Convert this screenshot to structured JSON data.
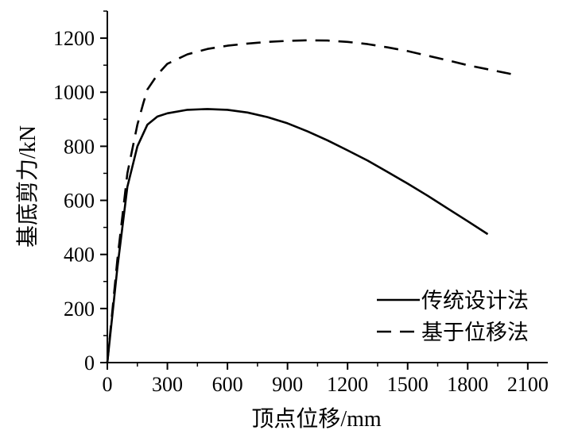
{
  "chart_data": {
    "type": "line",
    "title": "",
    "xlabel": "顶点位移/mm",
    "ylabel": "基底剪力/kN",
    "xlim": [
      0,
      2200
    ],
    "ylim": [
      0,
      1300
    ],
    "xticks": [
      0,
      300,
      600,
      900,
      1200,
      1500,
      1800,
      2100
    ],
    "yticks": [
      0,
      200,
      400,
      600,
      800,
      1000,
      1200
    ],
    "grid": false,
    "legend_position": "bottom-right",
    "series": [
      {
        "name": "传统设计法",
        "style": "solid",
        "color": "#000000",
        "x": [
          0,
          50,
          100,
          150,
          200,
          250,
          300,
          400,
          500,
          600,
          700,
          800,
          900,
          1000,
          1100,
          1200,
          1300,
          1400,
          1500,
          1600,
          1700,
          1800,
          1900
        ],
        "y": [
          0,
          350,
          650,
          800,
          880,
          910,
          922,
          935,
          938,
          935,
          925,
          908,
          885,
          855,
          822,
          785,
          747,
          705,
          662,
          617,
          570,
          523,
          475
        ]
      },
      {
        "name": "基于位移法",
        "style": "dashed",
        "color": "#000000",
        "x": [
          0,
          50,
          100,
          150,
          180,
          200,
          250,
          300,
          400,
          500,
          600,
          700,
          800,
          900,
          1000,
          1100,
          1200,
          1300,
          1400,
          1500,
          1600,
          1700,
          1800,
          1900,
          2000,
          2050
        ],
        "y": [
          0,
          380,
          700,
          880,
          960,
          1010,
          1065,
          1105,
          1140,
          1160,
          1172,
          1180,
          1186,
          1190,
          1192,
          1191,
          1186,
          1178,
          1166,
          1152,
          1135,
          1118,
          1100,
          1085,
          1070,
          1062
        ]
      }
    ]
  }
}
